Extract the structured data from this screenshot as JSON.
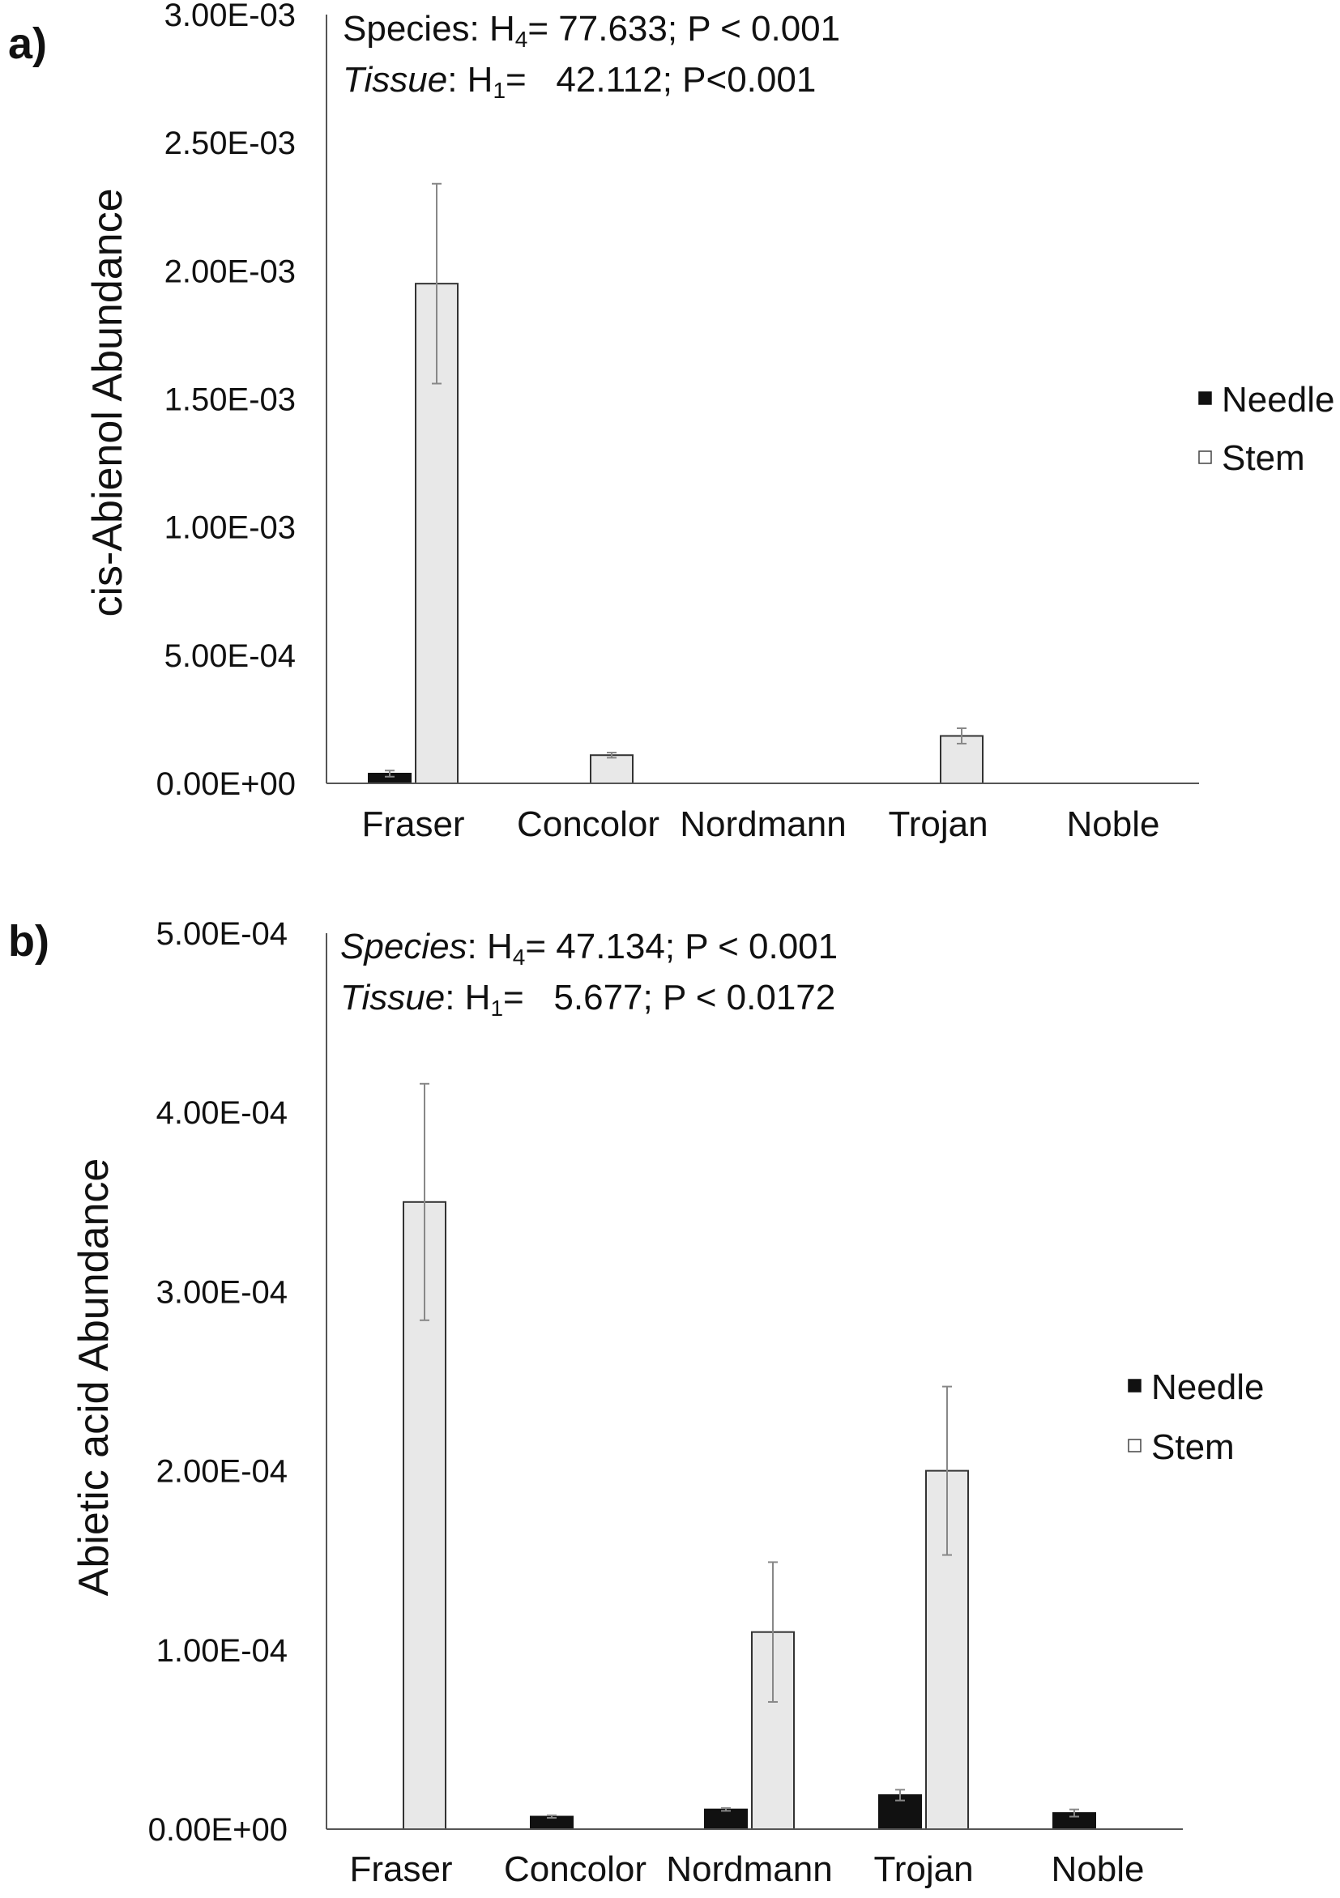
{
  "chart_data": [
    {
      "panel": "a)",
      "type": "bar",
      "ylabel": "cis-Abienol Abundance",
      "xlabel": "",
      "ylim": [
        0,
        0.003
      ],
      "yticks": [
        "0.00E+00",
        "5.00E-04",
        "1.00E-03",
        "1.50E-03",
        "2.00E-03",
        "2.50E-03",
        "3.00E-03"
      ],
      "categories": [
        "Fraser",
        "Concolor",
        "Nordmann",
        "Trojan",
        "Noble"
      ],
      "series": [
        {
          "name": "Needle",
          "color": "#111111",
          "values": [
            3.8e-05,
            0,
            0,
            0,
            0
          ],
          "errors": [
            1.2e-05,
            0,
            0,
            0,
            0
          ]
        },
        {
          "name": "Stem",
          "color": "#e8e8e8",
          "values": [
            0.00195,
            0.00011,
            0,
            0.000185,
            0
          ],
          "errors": [
            0.00039,
            1e-05,
            0,
            3e-05,
            0
          ]
        }
      ],
      "stats": {
        "line1": {
          "term": "Species",
          "term_italic": false,
          "sym": "H",
          "sub": "4",
          "text": "= 77.633; P < 0.001"
        },
        "line2": {
          "term": "Tissue",
          "term_italic": true,
          "sym": "H",
          "sub": "1",
          "text": "=   42.112; P<0.001"
        }
      },
      "legend": [
        "Needle",
        "Stem"
      ],
      "legend_position": "right",
      "grid": false
    },
    {
      "panel": "b)",
      "type": "bar",
      "ylabel": "Abietic acid Abundance",
      "xlabel": "",
      "ylim": [
        0,
        0.0005
      ],
      "yticks": [
        "0.00E+00",
        "1.00E-04",
        "2.00E-04",
        "3.00E-04",
        "4.00E-04",
        "5.00E-04"
      ],
      "categories": [
        "Fraser",
        "Concolor",
        "Nordmann",
        "Trojan",
        "Noble"
      ],
      "series": [
        {
          "name": "Needle",
          "color": "#111111",
          "values": [
            0,
            7e-06,
            1.1e-05,
            1.9e-05,
            9e-06
          ],
          "errors": [
            0,
            7e-07,
            8e-07,
            3e-06,
            2e-06
          ]
        },
        {
          "name": "Stem",
          "color": "#e8e8e8",
          "values": [
            0.00035,
            0,
            0.00011,
            0.0002,
            0
          ],
          "errors": [
            6.6e-05,
            0,
            3.9e-05,
            4.7e-05,
            0
          ]
        }
      ],
      "stats": {
        "line1": {
          "term": "Species",
          "term_italic": true,
          "sym": "H",
          "sub": "4",
          "text": "= 47.134; P < 0.001"
        },
        "line2": {
          "term": "Tissue",
          "term_italic": true,
          "sym": "H",
          "sub": "1",
          "text": "=   5.677; P < 0.0172"
        }
      },
      "legend": [
        "Needle",
        "Stem"
      ],
      "legend_position": "right",
      "grid": false
    }
  ]
}
